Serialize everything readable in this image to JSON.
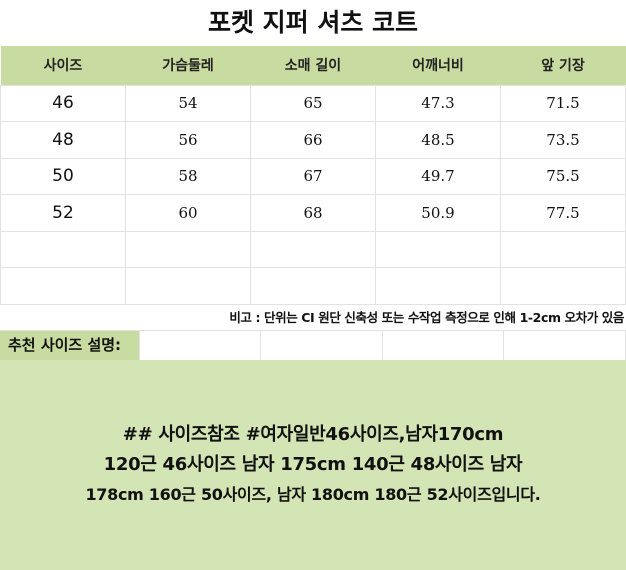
{
  "title": "포켓 지퍼 셔츠 코트",
  "table": {
    "headers": [
      "사이즈",
      "가슴둘레",
      "소매 길이",
      "어깨너비",
      "앞 기장"
    ],
    "rows": [
      [
        "46",
        "54",
        "65",
        "47.3",
        "71.5"
      ],
      [
        "48",
        "56",
        "66",
        "48.5",
        "73.5"
      ],
      [
        "50",
        "58",
        "67",
        "49.7",
        "75.5"
      ],
      [
        "52",
        "60",
        "68",
        "50.9",
        "77.5"
      ],
      [
        "",
        "",
        "",
        "",
        ""
      ],
      [
        "",
        "",
        "",
        "",
        ""
      ]
    ]
  },
  "remark": "비고 : 단위는 CI 원단 신축성 또는 수작업 측정으로 인해 1-2cm 오차가 있음",
  "recommend_label": "추천 사이즈 설명:",
  "note": [
    "## 사이즈참조 #여자일반46사이즈,남자170cm",
    "120근 46사이즈 남자 175cm 140근 48사이즈 남자",
    "178cm 160근 50사이즈, 남자 180cm 180근 52사이즈입니다."
  ],
  "colors": {
    "header_green": "#c8dba0",
    "note_green": "#d4e5b5"
  }
}
